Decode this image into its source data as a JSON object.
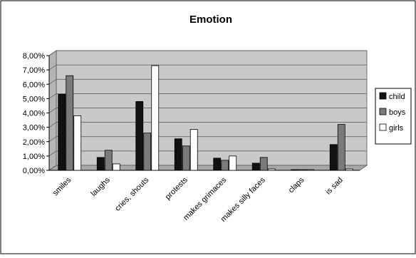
{
  "chart_data": {
    "type": "bar",
    "title": "Emotion",
    "xlabel": "",
    "ylabel": "",
    "ylim": [
      0,
      8
    ],
    "yticks": [
      "0,00%",
      "1,00%",
      "2,00%",
      "3,00%",
      "4,00%",
      "5,00%",
      "6,00%",
      "7,00%",
      "8,00%"
    ],
    "categories": [
      "smiles",
      "laughs",
      "cries, shouts",
      "protests",
      "makes grimaces",
      "makes silly faces",
      "claps",
      "is sad"
    ],
    "series": [
      {
        "name": "child",
        "color": "#111111",
        "values": [
          5.3,
          0.9,
          4.8,
          2.2,
          0.85,
          0.5,
          0.02,
          1.8
        ]
      },
      {
        "name": "boys",
        "color": "#7a7a7a",
        "values": [
          6.6,
          1.4,
          2.6,
          1.7,
          0.7,
          0.9,
          0.02,
          3.2
        ]
      },
      {
        "name": "girls",
        "color": "#ffffff",
        "values": [
          3.8,
          0.45,
          7.3,
          2.85,
          1.0,
          0.1,
          0.02,
          0.1
        ]
      }
    ],
    "grid": true,
    "legend": "right"
  }
}
